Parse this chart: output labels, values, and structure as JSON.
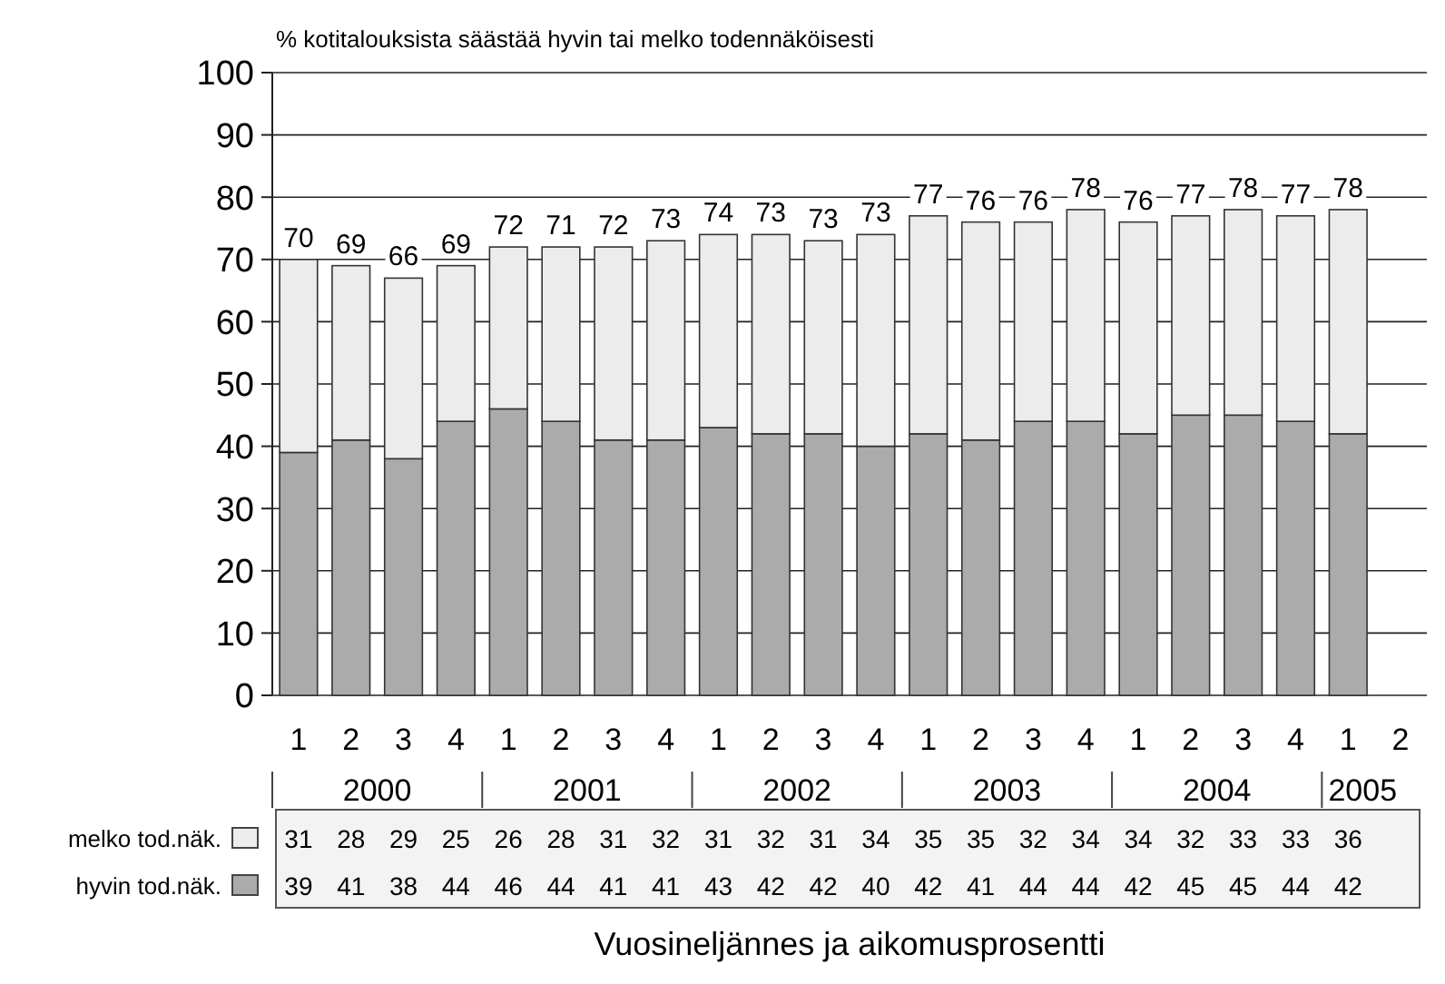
{
  "chart_data": {
    "type": "bar",
    "stacked": true,
    "ylabel": "% kotitalouksista säästää hyvin tai melko todennäköisesti",
    "categories": [
      "1",
      "2",
      "3",
      "4",
      "1",
      "2",
      "3",
      "4",
      "1",
      "2",
      "3",
      "4",
      "1",
      "2",
      "3",
      "4",
      "1",
      "2",
      "3",
      "4",
      "1",
      "2"
    ],
    "series": [
      {
        "name": "hyvin tod.näk.",
        "color": "#ababab",
        "values": [
          39,
          41,
          38,
          44,
          46,
          44,
          41,
          41,
          43,
          42,
          42,
          40,
          42,
          41,
          44,
          44,
          42,
          45,
          45,
          44,
          42,
          null
        ]
      },
      {
        "name": "melko tod.näk.",
        "color": "#ececec",
        "values": [
          31,
          28,
          29,
          25,
          26,
          28,
          31,
          32,
          31,
          32,
          31,
          34,
          35,
          35,
          32,
          34,
          34,
          32,
          33,
          33,
          36,
          null
        ]
      }
    ],
    "totals": [
      "70",
      "69",
      "66",
      "69",
      "72",
      "71",
      "72",
      "73",
      "74",
      "73",
      "73",
      "73",
      "77",
      "76",
      "76",
      "78",
      "76",
      "77",
      "78",
      "77",
      "78",
      null
    ],
    "annotations": [
      "2000",
      "2001",
      "2002",
      "2003",
      "2004",
      "2005",
      "Vuosineljännes ja aikomusprosentti"
    ],
    "ylim": [
      0,
      100
    ],
    "yticks": [
      0,
      10,
      20,
      30,
      40,
      50,
      60,
      70,
      80,
      90,
      100
    ],
    "grid": "y",
    "data_labels": true,
    "legend": "bottom"
  }
}
